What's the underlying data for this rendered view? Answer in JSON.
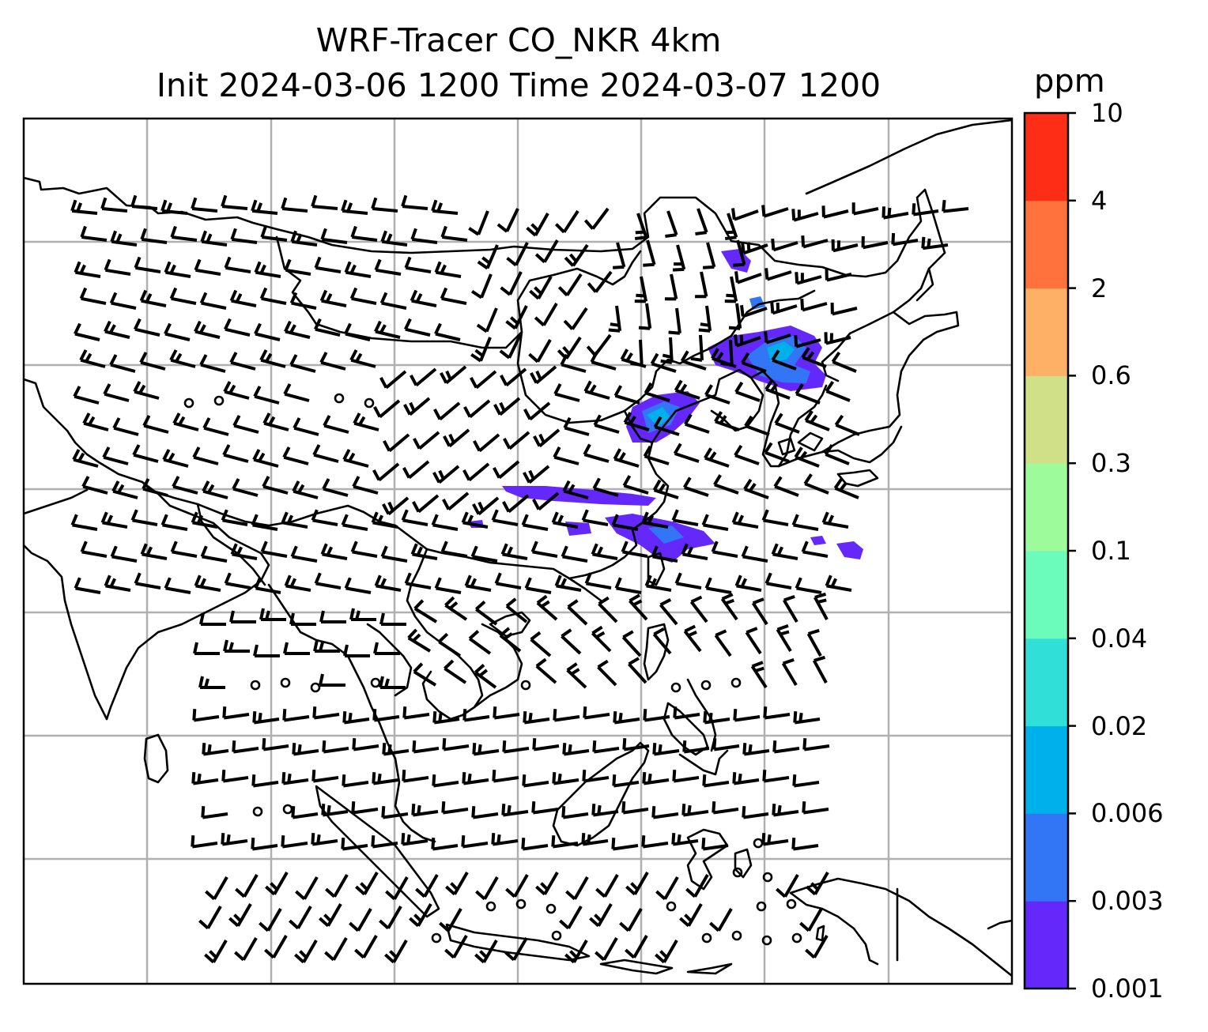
{
  "title": {
    "line1": "WRF-Tracer CO_NKR 4km",
    "line2": "Init 2024-03-06 1200 Time 2024-03-07 1200"
  },
  "colorbar": {
    "unit": "ppm",
    "levels": [
      "0.001",
      "0.003",
      "0.006",
      "0.02",
      "0.04",
      "0.1",
      "0.3",
      "0.6",
      "2",
      "4",
      "10"
    ],
    "colors": [
      "#6428fa",
      "#3275f5",
      "#00b0eb",
      "#30e0d8",
      "#6bfbbb",
      "#9dfb9c",
      "#cfe088",
      "#feb066",
      "#ff723e",
      "#fd2d16"
    ]
  },
  "map": {
    "gridlines": true,
    "coastline_color": "#000000",
    "plume_color": "#6428fa",
    "plume_core_color": "#3275f5",
    "plume_peak_color": "#00b0eb"
  }
}
